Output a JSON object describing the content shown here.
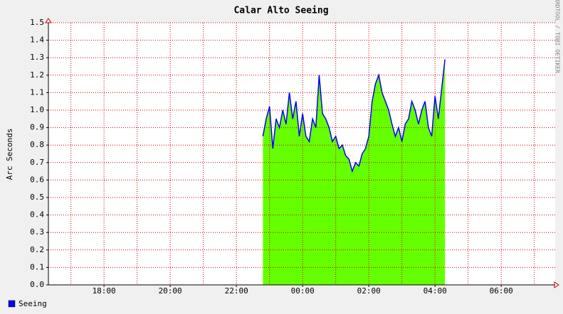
{
  "chart_data": {
    "type": "area",
    "title": "Calar Alto Seeing",
    "ylabel": "Arc Seconds",
    "side_text": "RRDTOOL / TOBI OETIKER",
    "x": [
      22.8,
      22.9,
      23.0,
      23.1,
      23.2,
      23.3,
      23.4,
      23.5,
      23.6,
      23.7,
      23.8,
      23.9,
      24.0,
      24.1,
      24.2,
      24.3,
      24.4,
      24.5,
      24.6,
      24.7,
      24.8,
      24.9,
      25.0,
      25.1,
      25.2,
      25.3,
      25.4,
      25.5,
      25.6,
      25.7,
      25.8,
      25.9,
      26.0,
      26.1,
      26.2,
      26.3,
      26.4,
      26.5,
      26.6,
      26.7,
      26.8,
      26.9,
      27.0,
      27.1,
      27.2,
      27.3,
      27.4,
      27.5,
      27.6,
      27.7,
      27.8,
      27.9,
      28.0,
      28.1,
      28.2,
      28.3
    ],
    "series": [
      {
        "name": "Seeing",
        "color": "#0000ff",
        "area_color": "#66ff00",
        "values": [
          0.85,
          0.95,
          1.02,
          0.78,
          0.95,
          0.9,
          1.0,
          0.92,
          1.1,
          0.95,
          1.05,
          0.85,
          0.98,
          0.85,
          0.82,
          0.95,
          0.9,
          1.2,
          0.98,
          0.95,
          0.9,
          0.82,
          0.85,
          0.78,
          0.8,
          0.74,
          0.72,
          0.65,
          0.7,
          0.68,
          0.75,
          0.78,
          0.85,
          1.05,
          1.15,
          1.2,
          1.1,
          1.05,
          1.0,
          0.92,
          0.85,
          0.9,
          0.82,
          0.92,
          0.95,
          1.05,
          1.0,
          0.92,
          1.0,
          1.05,
          0.9,
          0.85,
          1.08,
          0.95,
          1.12,
          1.29
        ]
      }
    ],
    "xlim": [
      16.32,
      31.63
    ],
    "xticks": [
      {
        "value": 18,
        "label": "18:00"
      },
      {
        "value": 20,
        "label": "20:00"
      },
      {
        "value": 22,
        "label": "22:00"
      },
      {
        "value": 24,
        "label": "00:00"
      },
      {
        "value": 26,
        "label": "02:00"
      },
      {
        "value": 28,
        "label": "04:00"
      },
      {
        "value": 30,
        "label": "06:00"
      }
    ],
    "xgrid": [
      17,
      18,
      19,
      20,
      21,
      22,
      23,
      24,
      25,
      26,
      27,
      28,
      29,
      30,
      31
    ],
    "ylim": [
      0,
      1.5
    ],
    "yticks": [
      {
        "value": 0,
        "label": "0.0"
      },
      0.1,
      0.2,
      0.3,
      0.4,
      0.5,
      0.6,
      0.7,
      0.8,
      0.9,
      {
        "value": 1,
        "label": "1.0"
      },
      1.1,
      1.2,
      1.3,
      1.4,
      1.5
    ],
    "grid": true,
    "grid_color": "#cc0000",
    "legend": "bottom-left"
  }
}
